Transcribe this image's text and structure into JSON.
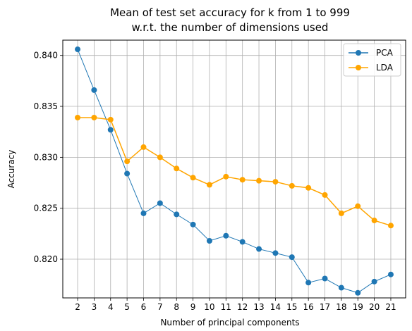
{
  "chart_data": {
    "type": "line",
    "title_lines": [
      "Mean of test set accuracy for k from 1 to 999",
      "w.r.t. the number of dimensions used"
    ],
    "xlabel": "Number of principal components",
    "ylabel": "Accuracy",
    "x": [
      2,
      3,
      4,
      5,
      6,
      7,
      8,
      9,
      10,
      11,
      12,
      13,
      14,
      15,
      16,
      17,
      18,
      19,
      20,
      21
    ],
    "xlim": [
      1.1,
      21.9
    ],
    "ylim": [
      0.8162,
      0.8415
    ],
    "yticks": [
      0.82,
      0.825,
      0.83,
      0.835,
      0.84
    ],
    "ytick_labels": [
      "0.820",
      "0.825",
      "0.830",
      "0.835",
      "0.840"
    ],
    "grid": true,
    "legend_position": "top-right",
    "series": [
      {
        "name": "PCA",
        "color": "#1f77b4",
        "values": [
          0.8406,
          0.8366,
          0.8327,
          0.8284,
          0.8245,
          0.8255,
          0.8244,
          0.8234,
          0.8218,
          0.8223,
          0.8217,
          0.821,
          0.8206,
          0.8202,
          0.8177,
          0.8181,
          0.8172,
          0.8167,
          0.8178,
          0.8185
        ]
      },
      {
        "name": "LDA",
        "color": "#ffa500",
        "values": [
          0.8339,
          0.8339,
          0.8337,
          0.8296,
          0.831,
          0.83,
          0.8289,
          0.828,
          0.8273,
          0.8281,
          0.8278,
          0.8277,
          0.8276,
          0.8272,
          0.827,
          0.8263,
          0.8245,
          0.8252,
          0.8238,
          0.8233
        ]
      }
    ]
  }
}
